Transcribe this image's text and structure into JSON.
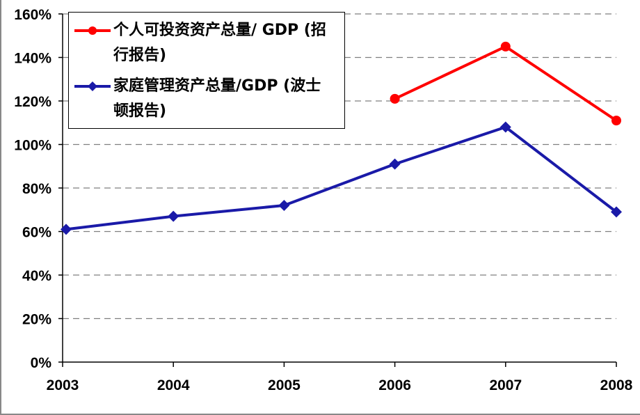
{
  "chart_data": {
    "type": "line",
    "x": [
      "2003",
      "2004",
      "2005",
      "2006",
      "2007",
      "2008"
    ],
    "yticks": [
      "0%",
      "20%",
      "40%",
      "60%",
      "80%",
      "100%",
      "120%",
      "140%",
      "160%"
    ],
    "ylim": [
      0,
      160
    ],
    "grid": true,
    "legend_position": "top-left",
    "series": [
      {
        "name": "个人可投资资产总量/ GDP (招行报告)",
        "color": "#ff0000",
        "marker": "circle",
        "values": [
          null,
          null,
          null,
          121,
          145,
          111
        ]
      },
      {
        "name": "家庭管理资产总量/GDP (波士顿报告)",
        "color": "#1a1aa8",
        "marker": "diamond",
        "values": [
          61,
          67,
          72,
          91,
          108,
          69
        ]
      }
    ]
  }
}
